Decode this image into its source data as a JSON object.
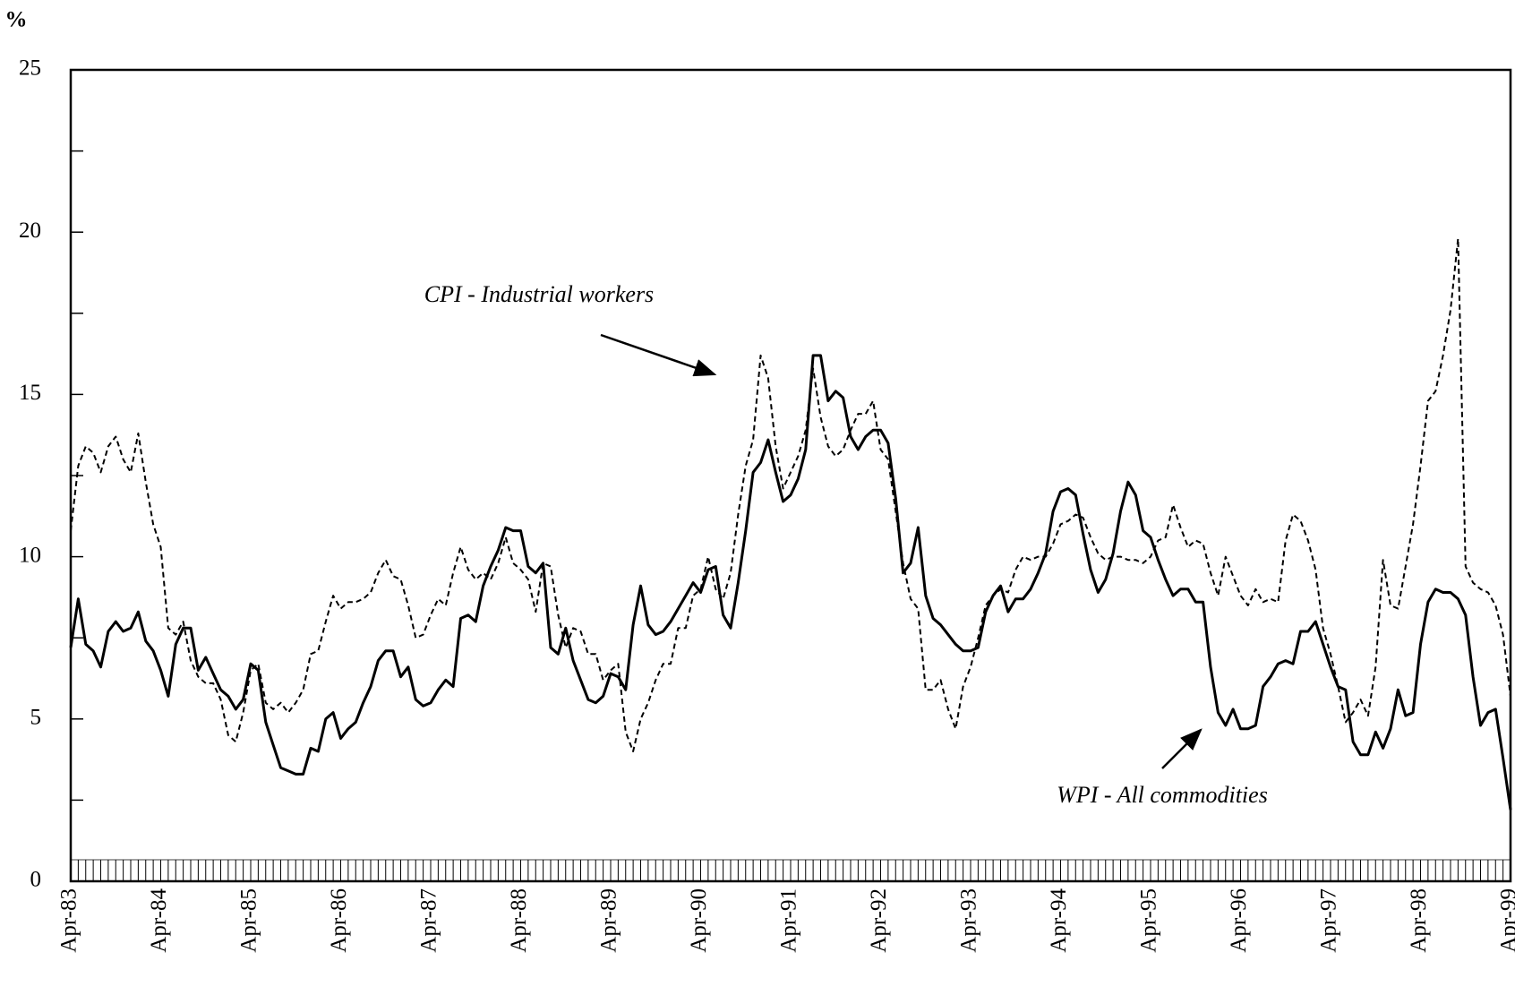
{
  "chart_data": {
    "type": "line",
    "ylabel": "%",
    "categories": [
      "Apr-83",
      null,
      null,
      null,
      null,
      null,
      null,
      null,
      null,
      null,
      null,
      null,
      "Apr-84",
      null,
      null,
      null,
      null,
      null,
      null,
      null,
      null,
      null,
      null,
      null,
      "Apr-85",
      null,
      null,
      null,
      null,
      null,
      null,
      null,
      null,
      null,
      null,
      null,
      "Apr-86",
      null,
      null,
      null,
      null,
      null,
      null,
      null,
      null,
      null,
      null,
      null,
      "Apr-87",
      null,
      null,
      null,
      null,
      null,
      null,
      null,
      null,
      null,
      null,
      null,
      "Apr-88",
      null,
      null,
      null,
      null,
      null,
      null,
      null,
      null,
      null,
      null,
      null,
      "Apr-89",
      null,
      null,
      null,
      null,
      null,
      null,
      null,
      null,
      null,
      null,
      null,
      "Apr-90",
      null,
      null,
      null,
      null,
      null,
      null,
      null,
      null,
      null,
      null,
      null,
      "Apr-91",
      null,
      null,
      null,
      null,
      null,
      null,
      null,
      null,
      null,
      null,
      null,
      "Apr-92",
      null,
      null,
      null,
      null,
      null,
      null,
      null,
      null,
      null,
      null,
      null,
      "Apr-93",
      null,
      null,
      null,
      null,
      null,
      null,
      null,
      null,
      null,
      null,
      null,
      "Apr-94",
      null,
      null,
      null,
      null,
      null,
      null,
      null,
      null,
      null,
      null,
      null,
      "Apr-95",
      null,
      null,
      null,
      null,
      null,
      null,
      null,
      null,
      null,
      null,
      null,
      "Apr-96",
      null,
      null,
      null,
      null,
      null,
      null,
      null,
      null,
      null,
      null,
      null,
      "Apr-97",
      null,
      null,
      null,
      null,
      null,
      null,
      null,
      null,
      null,
      null,
      null,
      "Apr-98",
      null,
      null,
      null,
      null,
      null,
      null,
      null,
      null,
      null,
      null,
      null,
      "Apr-99"
    ],
    "series": [
      {
        "color": "#000000",
        "dashed": false,
        "values": [
          7.2,
          8.7,
          7.3,
          7.1,
          6.6,
          7.7,
          8.0,
          7.7,
          7.8,
          8.3,
          7.4,
          7.1,
          6.5,
          5.7,
          7.3,
          7.8,
          7.8,
          6.5,
          6.9,
          6.4,
          5.9,
          5.7,
          5.3,
          5.6,
          6.7,
          6.5,
          4.9,
          4.2,
          3.5,
          3.4,
          3.3,
          3.3,
          4.1,
          4.0,
          5.0,
          5.2,
          4.4,
          4.7,
          4.9,
          5.5,
          6.0,
          6.8,
          7.1,
          7.1,
          6.3,
          6.6,
          5.6,
          5.4,
          5.5,
          5.9,
          6.2,
          6.0,
          8.1,
          8.2,
          8.0,
          9.1,
          9.7,
          10.2,
          10.9,
          10.8,
          10.8,
          9.7,
          9.5,
          9.8,
          7.2,
          7.0,
          7.8,
          6.8,
          6.2,
          5.6,
          5.5,
          5.7,
          6.4,
          6.3,
          5.9,
          7.9,
          9.1,
          7.9,
          7.6,
          7.7,
          8.0,
          8.4,
          8.8,
          9.2,
          8.9,
          9.6,
          9.7,
          8.2,
          7.8,
          9.2,
          10.8,
          12.6,
          12.9,
          13.6,
          12.6,
          11.7,
          11.9,
          12.4,
          13.3,
          16.2,
          16.2,
          14.8,
          15.1,
          14.9,
          13.7,
          13.3,
          13.7,
          13.9,
          13.9,
          13.5,
          11.8,
          9.5,
          9.8,
          10.9,
          8.8,
          8.1,
          7.9,
          7.6,
          7.3,
          7.1,
          7.1,
          7.2,
          8.3,
          8.8,
          9.1,
          8.3,
          8.7,
          8.7,
          9.0,
          9.5,
          10.1,
          11.4,
          12.0,
          12.1,
          11.9,
          10.7,
          9.6,
          8.9,
          9.3,
          10.1,
          11.4,
          12.3,
          11.9,
          10.8,
          10.6,
          9.9,
          9.3,
          8.8,
          9.0,
          9.0,
          8.6,
          8.6,
          6.6,
          5.2,
          4.8,
          5.3,
          4.7,
          4.7,
          4.8,
          6.0,
          6.3,
          6.7,
          6.8,
          6.7,
          7.7,
          7.7,
          8.0,
          7.3,
          6.6,
          6.0,
          5.9,
          4.3,
          3.9,
          3.9,
          4.6,
          4.1,
          4.7,
          5.9,
          5.1,
          5.2,
          7.3,
          8.6,
          9.0,
          8.9,
          8.9,
          8.7,
          8.2,
          6.3,
          4.8,
          5.2,
          5.3,
          3.8,
          2.2
        ]
      },
      {
        "color": "#000000",
        "dashed": true,
        "values": [
          10.8,
          12.8,
          13.4,
          13.2,
          12.6,
          13.4,
          13.7,
          13.0,
          12.6,
          13.8,
          12.3,
          11.0,
          10.3,
          7.8,
          7.6,
          8.0,
          6.8,
          6.3,
          6.1,
          6.1,
          5.6,
          4.5,
          4.3,
          5.2,
          6.5,
          6.7,
          5.5,
          5.3,
          5.5,
          5.2,
          5.5,
          5.9,
          7.0,
          7.1,
          8.0,
          8.8,
          8.4,
          8.6,
          8.6,
          8.7,
          8.9,
          9.5,
          9.9,
          9.4,
          9.3,
          8.5,
          7.5,
          7.6,
          8.2,
          8.7,
          8.5,
          9.5,
          10.3,
          9.6,
          9.3,
          9.5,
          9.3,
          9.8,
          10.6,
          9.8,
          9.6,
          9.3,
          8.3,
          9.8,
          9.7,
          8.2,
          7.2,
          7.8,
          7.7,
          7.0,
          7.0,
          6.2,
          6.5,
          6.7,
          4.6,
          4.0,
          5.0,
          5.5,
          6.2,
          6.7,
          6.7,
          7.8,
          7.8,
          8.8,
          9.0,
          10.0,
          9.0,
          8.7,
          9.5,
          11.3,
          12.8,
          13.6,
          16.2,
          15.5,
          13.4,
          12.1,
          12.6,
          13.1,
          13.9,
          15.8,
          14.3,
          13.4,
          13.1,
          13.3,
          13.9,
          14.4,
          14.4,
          14.8,
          13.3,
          13.0,
          11.4,
          9.8,
          8.7,
          8.4,
          5.9,
          5.9,
          6.2,
          5.3,
          4.7,
          6.0,
          6.6,
          7.5,
          8.5,
          8.8,
          9.0,
          8.9,
          9.6,
          10.0,
          9.9,
          10.0,
          10.0,
          10.4,
          11.0,
          11.1,
          11.3,
          11.2,
          10.6,
          10.1,
          9.9,
          10.0,
          10.0,
          9.9,
          9.9,
          9.8,
          10.0,
          10.5,
          10.6,
          11.6,
          10.9,
          10.3,
          10.5,
          10.4,
          9.5,
          8.8,
          10.0,
          9.4,
          8.8,
          8.5,
          9.0,
          8.6,
          8.7,
          8.6,
          10.5,
          11.3,
          11.1,
          10.5,
          9.6,
          7.8,
          7.0,
          6.0,
          4.9,
          5.2,
          5.6,
          5.1,
          6.6,
          9.9,
          8.5,
          8.4,
          9.7,
          11.0,
          12.8,
          14.8,
          15.1,
          16.2,
          17.6,
          19.8,
          9.7,
          9.2,
          9.0,
          8.9,
          8.5,
          7.6,
          5.7
        ]
      }
    ],
    "annotations": [
      {
        "text": "CPI - Industrial workers"
      },
      {
        "text": "WPI - All commodities"
      }
    ],
    "ylim": [
      0,
      25
    ],
    "yticks": [
      0,
      5,
      10,
      15,
      20,
      25
    ],
    "yticks_minor": [
      2.5,
      7.5,
      12.5,
      17.5,
      22.5
    ]
  }
}
